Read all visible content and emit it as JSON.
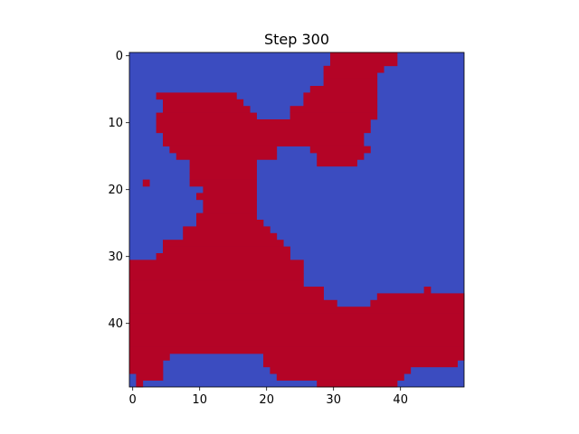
{
  "chart_data": {
    "type": "heatmap",
    "title": "Step 300",
    "xlabel": "",
    "ylabel": "",
    "xlim": [
      -0.5,
      49.5
    ],
    "ylim": [
      49.5,
      -0.5
    ],
    "x_ticks": [
      0,
      10,
      20,
      30,
      40
    ],
    "y_ticks": [
      0,
      10,
      20,
      30,
      40
    ],
    "grid": false,
    "colormap": "coolwarm",
    "colors": {
      "low": "#3b4cc0",
      "high": "#b40426"
    },
    "grid_size": [
      50,
      50
    ],
    "rows": [
      "BBBBBBBBBBBBBBBBBBBBBBBBBBBBBBRRRRRRRRRRBBBBBBBBBB",
      "BBBBBBBBBBBBBBBBBBBBBBBBBBBBBBRRRRRRRRRRBBBBBBBBBB",
      "BBBBBBBBBBBBBBBBBBBBBBBBBBBBBRRRRRRRRRBBBBBBBBBBBB",
      "BBBBBBBBBBBBBBBBBBBBBBBBBBBBBRRRRRRRRBBBBBBBBBBBBB",
      "BBBBBBBBBBBBBBBBBBBBBBBBBBBBBRRRRRRRRBBBBBBBBBBBBB",
      "BBBBBBBBBBBBBBBBBBBBBBBBBBBRRRRRRRRRRBBBBBBBBBBBBB",
      "BBBBRRRRRRRRRRRRBBBBBBBBBBRRRRRRRRRRRBBBBBBBBBBBBB",
      "BBBBBRRRRRRRRRRRRBBBBBBBBBRRRRRRRRRRRBBBBBBBBBBBBB",
      "BBBBBRRRRRRRRRRRRRBBBBBBRRRRRRRRRRRRRBBBBBBBBBBBBB",
      "BBBBRRRRRRRRRRRRRRRBBBBBRRRRRRRRRRRRRBBBBBBBBBBBBB",
      "BBBBRRRRRRRRRRRRRRRRRRRRRRRRRRRRRRRRBBBBBBBBBBBBBB",
      "BBBBRRRRRRRRRRRRRRRRRRRRRRRRRRRRRRRRBBBBBBBBBBBBBB",
      "BBBBBRRRRRRRRRRRRRRRRRRRRRRRRRRRRRRBBBBBBBBBBBBBBB",
      "BBBBBRRRRRRRRRRRRRRRRRRRRRRRRRRRRRRBBBBBBBBBBBBBBB",
      "BBBBBBRRRRRRRRRRRRRRRRBBBBBRRRRRRRRRBBBBBBBBBBBBBB",
      "BBBBBBBRRRRRRRRRRRRRRRBBBBBBRRRRRRRBBBBBBBBBBBBBBB",
      "BBBBBBBBBRRRRRRRRRRBBBBBBBBBRRRRRRBBBBBBBBBBBBBBBB",
      "BBBBBBBBBRRRRRRRRRRBBBBBBBBBBBBBBBBBBBBBBBBBBBBBBB",
      "BBBBBBBBBRRRRRRRRRRBBBBBBBBBBBBBBBBBBBBBBBBBBBBBBB",
      "BBRBBBBBBRRRRRRRRRRBBBBBBBBBBBBBBBBBBBBBBBBBBBBBBB",
      "BBBBBBBBBBBRRRRRRRRBBBBBBBBBBBBBBBBBBBBBBBBBBBBBBB",
      "BBBBBBBBBBRRRRRRRRRBBBBBBBBBBBBBBBBBBBBBBBBBBBBBBB",
      "BBBBBBBBBBBRRRRRRRRBBBBBBBBBBBBBBBBBBBBBBBBBBBBBBB",
      "BBBBBBBBBBBRRRRRRRRBBBBBBBBBBBBBBBBBBBBBBBBBBBBBBB",
      "BBBBBBBBBBRRRRRRRRRBBBBBBBBBBBBBBBBBBBBBBBBBBBBBBB",
      "BBBBBBBBBBRRRRRRRRRRBBBBBBBBBBBBBBBBBBBBBBBBBBBBBB",
      "BBBBBBBBRRRRRRRRRRRRRBBBBBBBBBBBBBBBBBBBBBBBBBBBBB",
      "BBBBBBBBRRRRRRRRRRRRRRBBBBBBBBBBBBBBBBBBBBBBBBBBBB",
      "BBBBBRRRRRRRRRRRRRRRRRRBBBBBBBBBBBBBBBBBBBBBBBBBBB",
      "BBBBBRRRRRRRRRRRRRRRRRRRBBBBBBBBBBBBBBBBBBBBBBBBBB",
      "BBBBRRRRRRRRRRRRRRRRRRRRBBBBBBBBBBBBBBBBBBBBBBBBBB",
      "RRRRRRRRRRRRRRRRRRRRRRRRRRBBBBBBBBBBBBBBBBBBBBBBBB",
      "RRRRRRRRRRRRRRRRRRRRRRRRRRBBBBBBBBBBBBBBBBBBBBBBBB",
      "RRRRRRRRRRRRRRRRRRRRRRRRRRBBBBBBBBBBBBBBBBBBBBBBBB",
      "RRRRRRRRRRRRRRRRRRRRRRRRRRBBBBBBBBBBBBBBBBBBBBBBBB",
      "RRRRRRRRRRRRRRRRRRRRRRRRRRRRRBBBBBBBBBBBBBBBRBBBBB",
      "RRRRRRRRRRRRRRRRRRRRRRRRRRRRRBBBBBBBBRRRRRRRRRRRRR",
      "RRRRRRRRRRRRRRRRRRRRRRRRRRRRRRRBBBBBRRRRRRRRRRRRRR",
      "RRRRRRRRRRRRRRRRRRRRRRRRRRRRRRRRRRRRRRRRRRRRRRRRRR",
      "RRRRRRRRRRRRRRRRRRRRRRRRRRRRRRRRRRRRRRRRRRRRRRRRRR",
      "RRRRRRRRRRRRRRRRRRRRRRRRRRRRRRRRRRRRRRRRRRRRRRRRRR",
      "RRRRRRRRRRRRRRRRRRRRRRRRRRRRRRRRRRRRRRRRRRRRRRRRRR",
      "RRRRRRRRRRRRRRRRRRRRRRRRRRRRRRRRRRRRRRRRRRRRRRRRRR",
      "RRRRRRRRRRRRRRRRRRRRRRRRRRRRRRRRRRRRRRRRRRRRRRRRRR",
      "RRRRRRRRRRRRRRRRRRRRRRRRRRRRRRRRRRRRRRRRRRRRRRRRRR",
      "RRRRRRBBBBBBBBBBBBBBRRRRRRRRRRRRRRRRRRRRRRRRRRRRRR",
      "RRRRRBBBBBBBBBBBBBBBRRRRRRRRRRRRRRRRRRRRRRRRRRRRRB",
      "RRRRRBBBBBBBBBBBBBBBBRRRRRRRRRRRRRRRRRRRRRBBBBBBBB",
      "BRRRRBBBBBBBBBBBBBBBBBRRRRRRRRRRRRRRRRRRRBBBBBBBBB",
      "BRBBBBBBBBBBBBBBBBBBBBBBBBBBRRRRRRRRRRRRBBBBBBBBBB"
    ]
  }
}
